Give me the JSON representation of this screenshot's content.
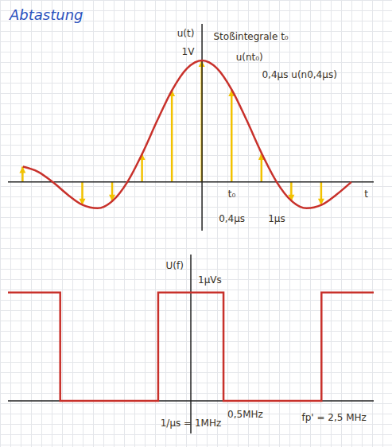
{
  "chart_data": [
    {
      "type": "line",
      "title": "Abtastung",
      "y_label": "u(t)",
      "x_label": "t",
      "x": [
        -2.4,
        -2.2,
        -2,
        -1.8,
        -1.6,
        -1.4,
        -1.2,
        -1,
        -0.8,
        -0.6,
        -0.4,
        -0.2,
        0,
        0.2,
        0.4,
        0.6,
        0.8,
        1,
        1.2,
        1.4,
        1.6,
        1.8,
        2
      ],
      "series": [
        {
          "name": "u(t)",
          "type": "line",
          "color": "#c8312b",
          "values": [
            0.126,
            0.085,
            0,
            -0.104,
            -0.189,
            -0.216,
            -0.156,
            0,
            0.234,
            0.505,
            0.757,
            0.935,
            1,
            0.935,
            0.757,
            0.505,
            0.234,
            0,
            -0.156,
            -0.216,
            -0.189,
            -0.104,
            0
          ]
        },
        {
          "name": "u(nt₀)",
          "type": "bar",
          "marker": "arrow",
          "color": "#f2c200",
          "values": [
            0.126,
            null,
            0,
            null,
            -0.189,
            null,
            -0.156,
            null,
            0.234,
            null,
            0.757,
            null,
            1,
            null,
            0.757,
            null,
            0.234,
            null,
            -0.156,
            null,
            -0.189,
            null,
            0
          ]
        }
      ],
      "xlim": [
        -2.6,
        2.3
      ],
      "ylim": [
        -0.4,
        1.3
      ],
      "tick_labels": false,
      "annotations": [
        {
          "text": "1V",
          "x": -0.05,
          "y": 1.07
        },
        {
          "text": "Stoßintegrale t₀",
          "x": 0.1,
          "y": 1.2
        },
        {
          "text": "u(nt₀)",
          "x": 0.4,
          "y": 1.03
        },
        {
          "text": "0,4µs u(n0,4µs)",
          "x": 0.75,
          "y": 0.88
        },
        {
          "text": "t₀",
          "x": 0.4,
          "y": -0.1
        },
        {
          "text": "0,4µs",
          "x": 0.4,
          "y": -0.3
        },
        {
          "text": "1µs",
          "x": 1.0,
          "y": -0.3
        }
      ]
    },
    {
      "type": "line",
      "y_label": "U(f)",
      "x": [
        -2.8,
        -2,
        -2,
        -0.5,
        -0.5,
        0.5,
        0.5,
        2,
        2,
        2.8
      ],
      "series": [
        {
          "name": "U(f)",
          "type": "line",
          "color": "#c8312b",
          "values": [
            1,
            1,
            0,
            0,
            1,
            1,
            0,
            0,
            1,
            1
          ]
        }
      ],
      "xlim": [
        -2.8,
        2.8
      ],
      "ylim": [
        -0.3,
        1.35
      ],
      "tick_labels": false,
      "annotations": [
        {
          "text": "1µVs",
          "x": 0.05,
          "y": 1.12
        },
        {
          "text": "0,5MHz",
          "x": 0.5,
          "y": -0.12
        },
        {
          "text": "1/µs = 1MHz",
          "x": 0,
          "y": -0.2
        },
        {
          "text": "fp' = 2,5 MHz",
          "x": 2.75,
          "y": -0.15
        }
      ]
    }
  ]
}
